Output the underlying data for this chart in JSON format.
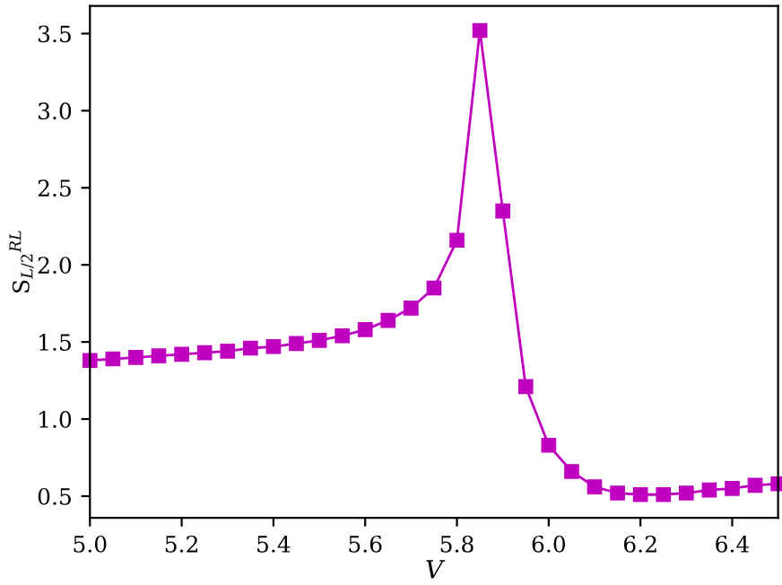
{
  "chart_data": {
    "type": "line",
    "xlabel": "V",
    "ylabel": "S$_{L/2}$$^{RL}$",
    "x": [
      5.0,
      5.05,
      5.1,
      5.15,
      5.2,
      5.25,
      5.3,
      5.35,
      5.4,
      5.45,
      5.5,
      5.55,
      5.6,
      5.65,
      5.7,
      5.75,
      5.8,
      5.85,
      5.9,
      5.95,
      6.0,
      6.05,
      6.1,
      6.15,
      6.2,
      6.25,
      6.3,
      6.35,
      6.4,
      6.45,
      6.5
    ],
    "series": [
      {
        "color": "#bf00bf",
        "values": [
          1.38,
          1.39,
          1.4,
          1.41,
          1.42,
          1.43,
          1.44,
          1.46,
          1.47,
          1.49,
          1.51,
          1.54,
          1.58,
          1.64,
          1.72,
          1.85,
          2.16,
          3.52,
          2.35,
          1.21,
          0.83,
          0.66,
          0.56,
          0.52,
          0.51,
          0.51,
          0.52,
          0.54,
          0.55,
          0.57,
          0.58
        ]
      }
    ],
    "xlim": [
      5.0,
      6.5
    ],
    "ylim": [
      0.36,
      3.68
    ],
    "xticks": [
      {
        "value": 5.0,
        "label": "5.0"
      },
      {
        "value": 5.2,
        "label": "5.2"
      },
      {
        "value": 5.4,
        "label": "5.4"
      },
      {
        "value": 5.6,
        "label": "5.6"
      },
      {
        "value": 5.8,
        "label": "5.8"
      },
      {
        "value": 6.0,
        "label": "6.0"
      },
      {
        "value": 6.2,
        "label": "6.2"
      },
      {
        "value": 6.4,
        "label": "6.4"
      }
    ],
    "yticks": [
      {
        "value": 0.5,
        "label": "0.5"
      },
      {
        "value": 1.0,
        "label": "1.0"
      },
      {
        "value": 1.5,
        "label": "1.5"
      },
      {
        "value": 2.0,
        "label": "2.0"
      },
      {
        "value": 2.5,
        "label": "2.5"
      },
      {
        "value": 3.0,
        "label": "3.0"
      },
      {
        "value": 3.5,
        "label": "3.5"
      }
    ],
    "marker": "square",
    "line_style": "solid",
    "grid": false,
    "legend": false
  }
}
